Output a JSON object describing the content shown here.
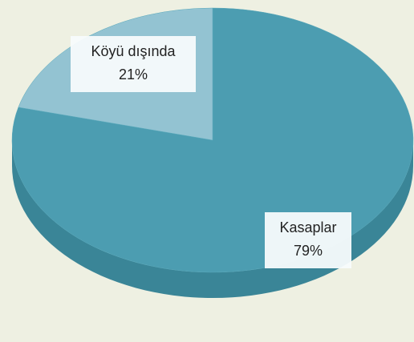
{
  "chart_data": {
    "type": "pie",
    "categories": [
      "Kasaplar",
      "Köyü dışında"
    ],
    "values": [
      79,
      21
    ],
    "value_labels": [
      "79%",
      "21%"
    ],
    "colors": [
      "#4c9db1",
      "#93c3d2"
    ]
  }
}
